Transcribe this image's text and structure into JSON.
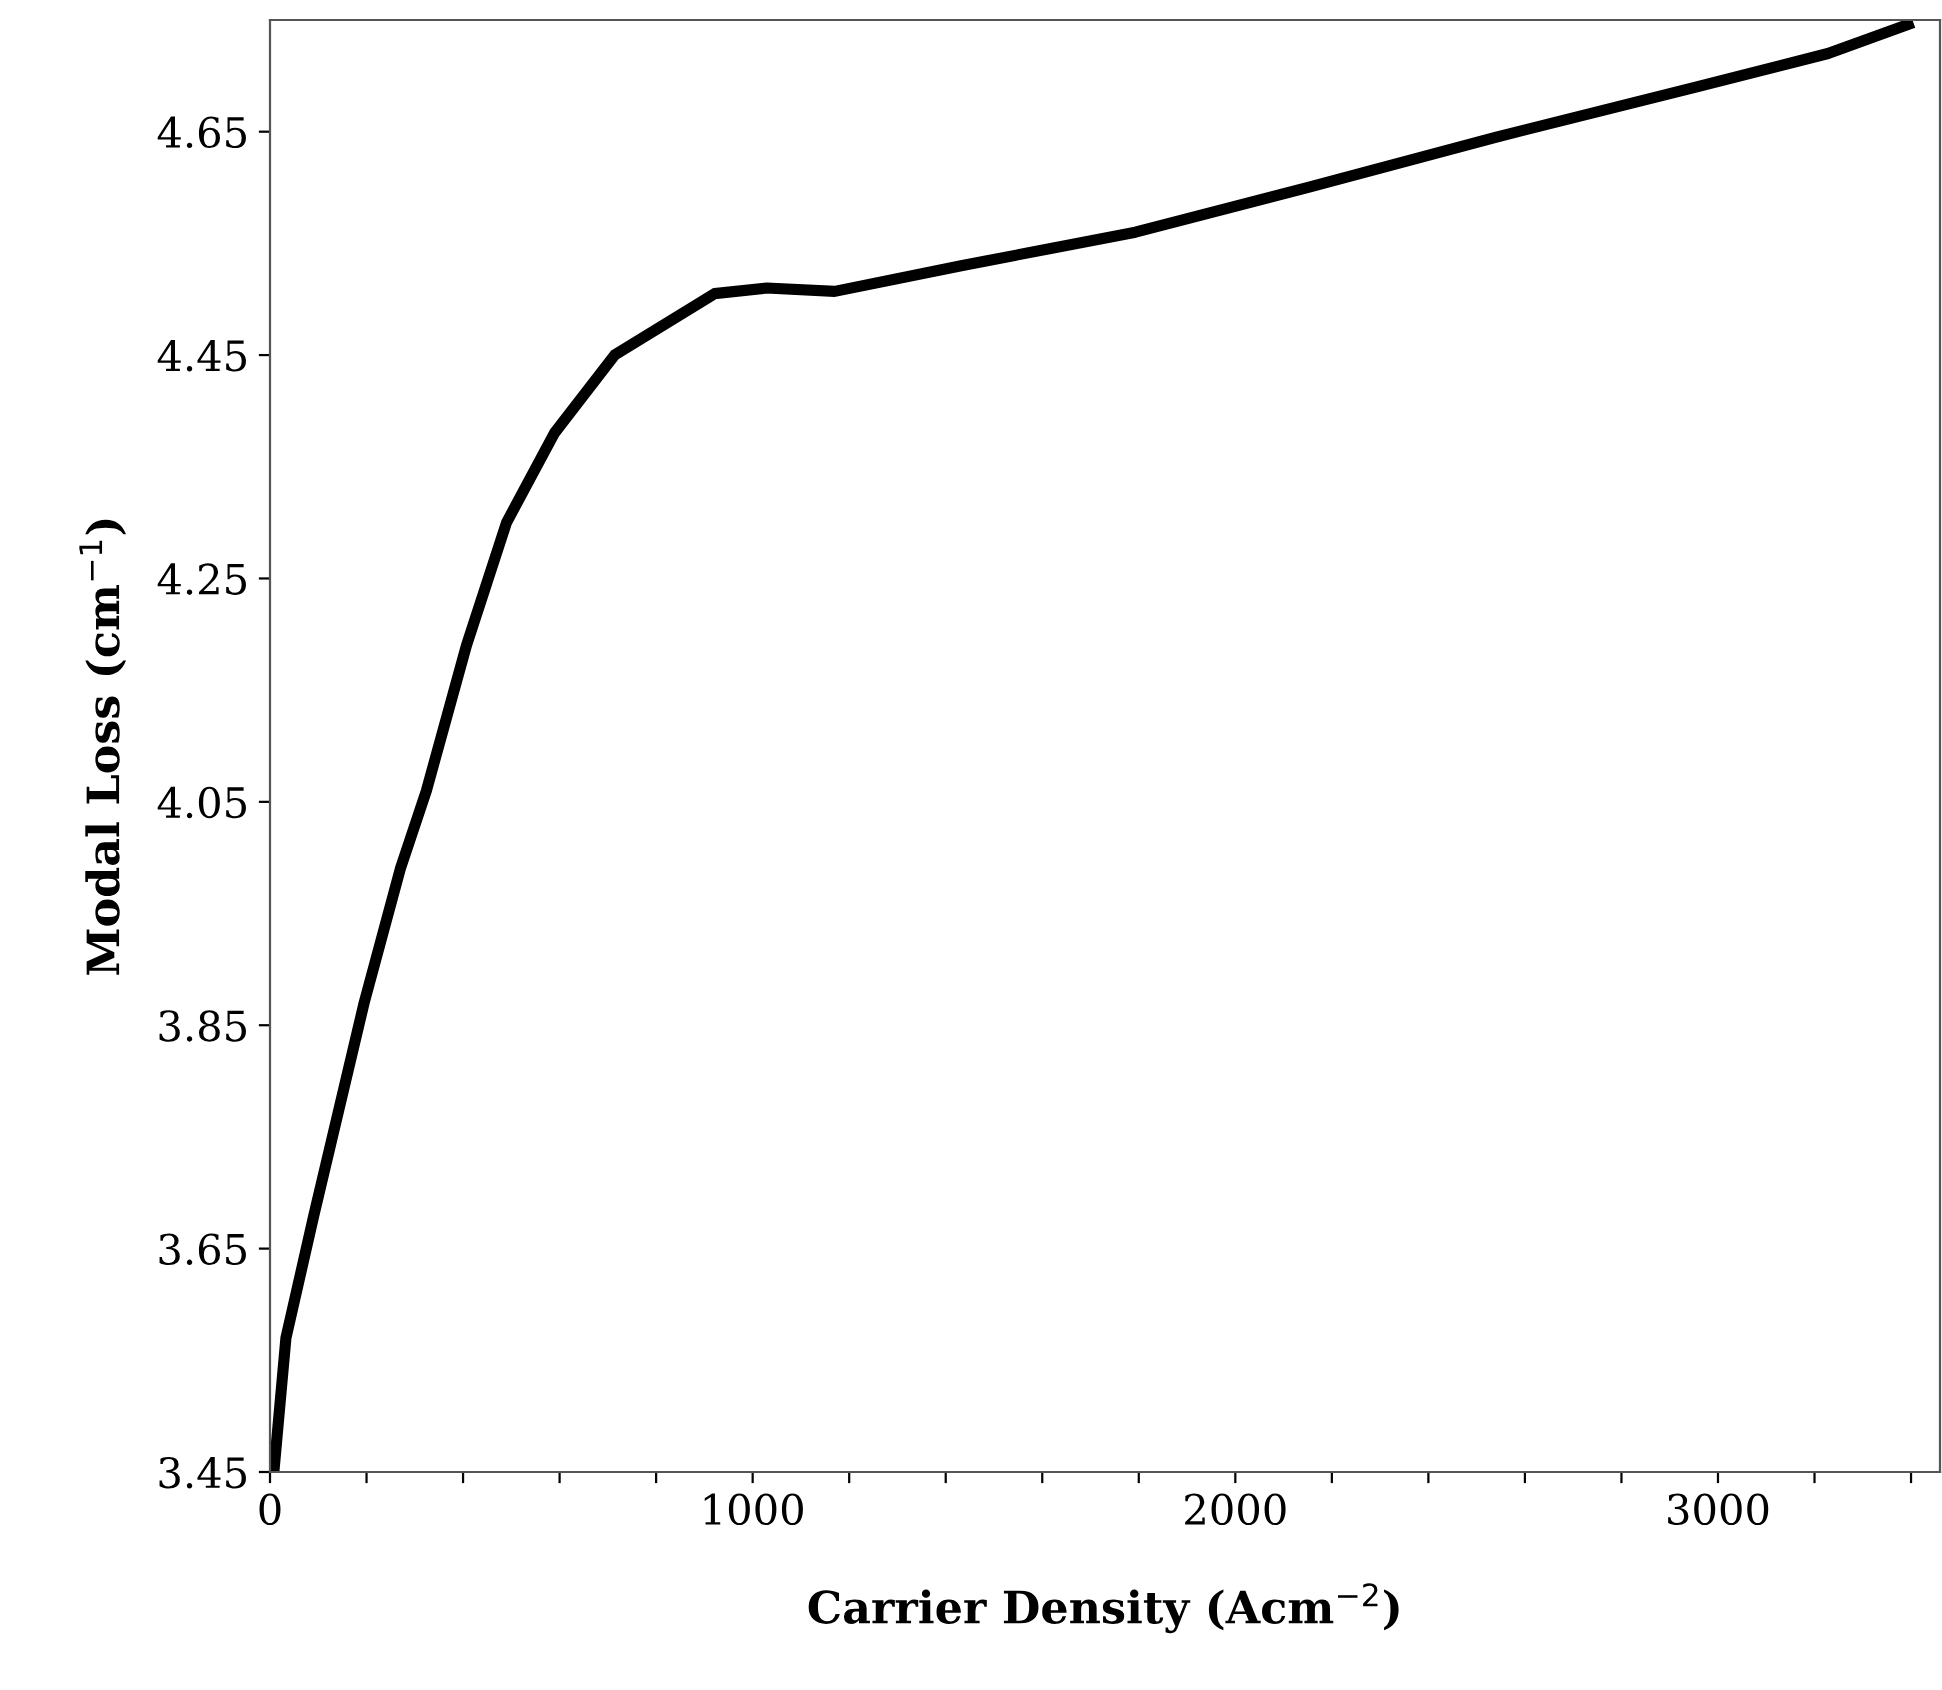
{
  "chart_data": {
    "type": "line",
    "xlabel": "Carrier Density (Acm$^{−2}$)",
    "ylabel": "Modal Loss (cm$^{−1}$)",
    "series": [
      {
        "color": "#000000",
        "x": [
          8,
          33,
          91,
          195,
          270,
          324,
          407,
          490,
          589,
          714,
          921,
          1029,
          1170,
          1432,
          1793,
          2149,
          2539,
          2954,
          3228,
          3394
        ],
        "values": [
          3.45,
          3.57,
          3.68,
          3.87,
          3.99,
          4.06,
          4.19,
          4.3,
          4.38,
          4.45,
          4.505,
          4.51,
          4.507,
          4.53,
          4.56,
          4.6,
          4.645,
          4.69,
          4.72,
          4.746
        ]
      }
    ],
    "xlim": [
      0,
      3460
    ],
    "ylim": [
      3.45,
      4.75
    ],
    "xticks": [
      0,
      {
        "value": 200,
        "label": null
      },
      {
        "value": 400,
        "label": null
      },
      {
        "value": 600,
        "label": null
      },
      {
        "value": 800,
        "label": null
      },
      1000,
      {
        "value": 1200,
        "label": null
      },
      {
        "value": 1400,
        "label": null
      },
      {
        "value": 1600,
        "label": null
      },
      {
        "value": 1800,
        "label": null
      },
      2000,
      {
        "value": 2200,
        "label": null
      },
      {
        "value": 2400,
        "label": null
      },
      {
        "value": 2600,
        "label": null
      },
      {
        "value": 2800,
        "label": null
      },
      3000,
      {
        "value": 3200,
        "label": null
      },
      {
        "value": 3400,
        "label": null
      }
    ],
    "yticks": [
      3.45,
      3.65,
      3.85,
      4.05,
      4.25,
      4.45,
      4.65
    ],
    "grid": false,
    "marker": "none",
    "line_style": "solid"
  }
}
